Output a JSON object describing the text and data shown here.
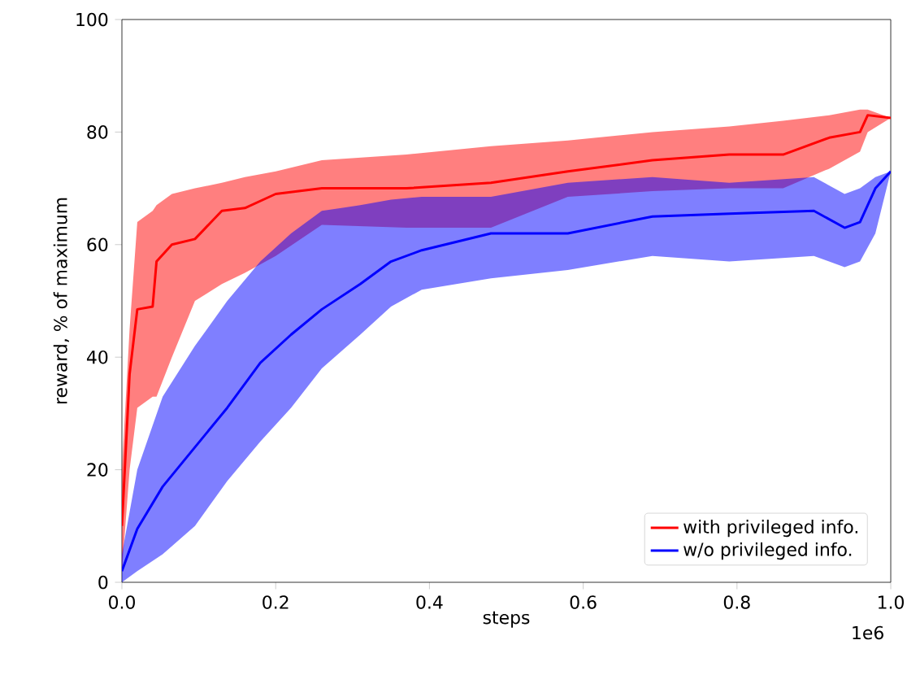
{
  "chart_data": {
    "type": "line",
    "xlabel": "steps",
    "ylabel": "reward, % of maximum",
    "annotations": [
      "1e6"
    ],
    "xlim": [
      0.0,
      1.0
    ],
    "ylim": [
      0,
      100
    ],
    "xticks": [
      {
        "value": 0,
        "label": "0.0"
      },
      0.2,
      0.4,
      0.6,
      0.8,
      {
        "value": 1,
        "label": "1.0"
      }
    ],
    "yticks": [
      0,
      20,
      40,
      60,
      80,
      100
    ],
    "grid": false,
    "legend": "bottom right",
    "series": [
      {
        "name": "with privileged info.",
        "color": "#ff0000",
        "x": [
          0.0,
          0.01,
          0.02,
          0.04,
          0.045,
          0.065,
          0.095,
          0.13,
          0.16,
          0.2,
          0.26,
          0.37,
          0.48,
          0.58,
          0.69,
          0.79,
          0.86,
          0.92,
          0.96,
          0.97,
          1.0
        ],
        "values": [
          10,
          37,
          48.5,
          49,
          57,
          60,
          61,
          66,
          66.5,
          69,
          70,
          70,
          71,
          73,
          75,
          76,
          76,
          79,
          80,
          83,
          82.5
        ],
        "upper": [
          20,
          45,
          64,
          66,
          67,
          69,
          70,
          71,
          72,
          73,
          75,
          76,
          77.5,
          78.5,
          80,
          81,
          82,
          83,
          84,
          84,
          82.5
        ],
        "lower": [
          2,
          20,
          31,
          33,
          33,
          40,
          50,
          53,
          55,
          58,
          63.5,
          63,
          63,
          68.5,
          69.5,
          70,
          70,
          73.5,
          76.5,
          80,
          82.5
        ]
      },
      {
        "name": "w/o privileged info.",
        "color": "#0000ff",
        "x": [
          0.0,
          0.02,
          0.053,
          0.095,
          0.137,
          0.18,
          0.22,
          0.26,
          0.31,
          0.35,
          0.39,
          0.48,
          0.58,
          0.69,
          0.79,
          0.9,
          0.94,
          0.96,
          0.98,
          1.0
        ],
        "values": [
          2,
          9.5,
          17,
          24,
          31,
          39,
          44,
          48.5,
          53,
          57,
          59,
          62,
          62,
          65,
          65.5,
          66,
          63,
          64,
          70,
          73
        ],
        "upper": [
          5,
          20,
          33,
          42,
          50,
          57,
          62,
          66,
          67,
          68,
          68.5,
          68.5,
          71,
          72,
          71,
          72,
          69,
          70,
          72,
          73
        ],
        "lower": [
          0,
          2,
          5,
          10,
          18,
          25,
          31,
          38,
          44,
          49,
          52,
          54,
          55.5,
          58,
          57,
          58,
          56,
          57,
          62,
          73
        ]
      }
    ]
  }
}
